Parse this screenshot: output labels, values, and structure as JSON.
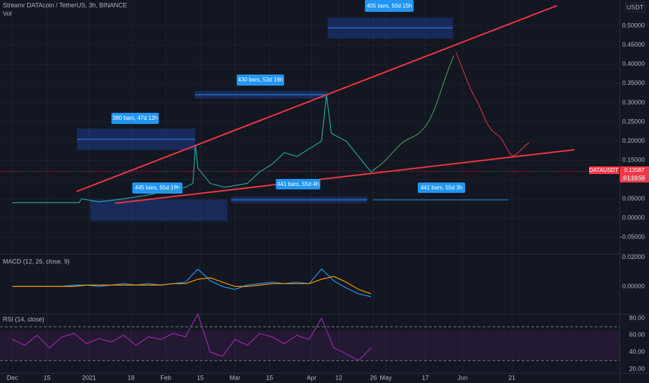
{
  "header": {
    "title": "Streamr DATAcoin / TetherUS, 3h, BINANCE",
    "volume": "Vol",
    "currency": "USDT"
  },
  "price_tag": {
    "symbol": "DATAUSDT",
    "price": "0.12087",
    "countdown": "01:19:55"
  },
  "annotations": [
    "405 bars, 50d 15h",
    "430 bars, 53d 19h",
    "380 bars, 47d 12h",
    "445 bars, 55d 19h",
    "441 bars, 55d 4h",
    "441 bars, 55d 3h"
  ],
  "chart_data": [
    {
      "type": "line",
      "color": "#26a69a",
      "x": [
        0,
        10,
        20,
        27,
        28,
        35,
        45,
        55,
        62,
        70,
        73,
        74,
        75,
        80,
        86,
        95,
        100,
        105,
        110,
        115,
        120,
        125,
        127,
        129,
        135,
        140,
        145,
        147
      ],
      "values": [
        0.04,
        0.04,
        0.04,
        0.04,
        0.05,
        0.042,
        0.05,
        0.06,
        0.07,
        0.08,
        0.09,
        0.19,
        0.13,
        0.09,
        0.08,
        0.09,
        0.12,
        0.14,
        0.17,
        0.16,
        0.18,
        0.2,
        0.32,
        0.22,
        0.2,
        0.16,
        0.12,
        0.13
      ],
      "xlim": [
        -5,
        245.6
      ],
      "xticks": [
        {
          "value": 0,
          "label": "Dec"
        },
        {
          "value": 14,
          "label": "15"
        },
        {
          "value": 31,
          "label": "2021"
        },
        {
          "value": 48,
          "label": "18"
        },
        {
          "value": 62,
          "label": "Feb"
        },
        {
          "value": 76,
          "label": "15"
        },
        {
          "value": 90,
          "label": "Mar"
        },
        {
          "value": 104,
          "label": "15"
        },
        {
          "value": 121,
          "label": "Apr"
        },
        {
          "value": 132,
          "label": "12"
        },
        {
          "value": 146,
          "label": "26"
        },
        {
          "value": 151,
          "label": "May"
        },
        {
          "value": 167,
          "label": "17"
        },
        {
          "value": 182,
          "label": "Jun"
        },
        {
          "value": 202,
          "label": "21"
        }
      ],
      "ylim": [
        -0.094,
        0.567
      ],
      "yticks": [
        {
          "value": 0.5,
          "label": "0.50000"
        },
        {
          "value": 0.45,
          "label": "0.45000"
        },
        {
          "value": 0.4,
          "label": "0.40000"
        },
        {
          "value": 0.35,
          "label": "0.35000"
        },
        {
          "value": 0.3,
          "label": "0.30000"
        },
        {
          "value": 0.25,
          "label": "0.25000"
        },
        {
          "value": 0.2,
          "label": "0.20000"
        },
        {
          "value": 0.15,
          "label": "0.15000"
        },
        {
          "value": 0.1,
          "label": "0.10000"
        },
        {
          "value": 0.05,
          "label": "0.05000"
        },
        {
          "value": 0,
          "label": "0.00000"
        },
        {
          "value": -0.05,
          "label": "-0.05000"
        }
      ],
      "grid": true
    },
    {
      "type": "line",
      "title": "MACD (12, 26, close, 9)",
      "x": [
        0,
        5,
        10,
        15,
        20,
        25,
        30,
        35,
        40,
        45,
        50,
        55,
        60,
        65,
        70,
        75,
        80,
        85,
        90,
        95,
        100,
        105,
        110,
        115,
        120,
        125,
        130,
        135,
        140,
        145
      ],
      "series": [
        {
          "color": "#2196f3",
          "values": [
            0,
            0,
            0,
            0,
            0,
            0.001,
            0.001,
            0,
            0.001,
            0.002,
            0.001,
            0.002,
            0.001,
            0.002,
            0.003,
            0.012,
            0.004,
            0,
            -0.002,
            0.001,
            0.002,
            0.003,
            0.002,
            0.003,
            0.002,
            0.012,
            0.004,
            -0.001,
            -0.005,
            -0.007
          ]
        },
        {
          "color": "#ff9800",
          "values": [
            0,
            0,
            0,
            0,
            0,
            0,
            0.001,
            0.001,
            0.001,
            0.001,
            0.001,
            0.001,
            0.001,
            0.002,
            0.002,
            0.005,
            0.006,
            0.003,
            0,
            0,
            0.001,
            0.002,
            0.002,
            0.002,
            0.002,
            0.005,
            0.007,
            0.003,
            -0.002,
            -0.005
          ]
        }
      ],
      "ylim": [
        -0.019,
        0.0223
      ],
      "yticks": [
        {
          "value": 0.02,
          "label": "0.02000"
        },
        {
          "value": 0,
          "label": "0.00000"
        }
      ]
    },
    {
      "type": "line",
      "title": "RSI (14, close)",
      "color": "#9c27b0",
      "x": [
        0,
        5,
        10,
        15,
        20,
        25,
        30,
        35,
        40,
        45,
        50,
        55,
        60,
        65,
        70,
        75,
        80,
        85,
        90,
        95,
        100,
        105,
        110,
        115,
        120,
        125,
        130,
        135,
        140,
        145
      ],
      "values": [
        55,
        48,
        60,
        45,
        58,
        62,
        50,
        56,
        52,
        60,
        48,
        58,
        55,
        62,
        58,
        85,
        40,
        35,
        55,
        48,
        62,
        58,
        50,
        60,
        55,
        80,
        45,
        38,
        30,
        45
      ],
      "bands": [
        70,
        30
      ],
      "ylim": [
        15,
        85
      ],
      "yticks": [
        {
          "value": 80,
          "label": "80.00"
        },
        {
          "value": 60,
          "label": "60.00"
        },
        {
          "value": 40,
          "label": "40.00"
        },
        {
          "value": 20,
          "label": "20.00"
        }
      ]
    }
  ]
}
